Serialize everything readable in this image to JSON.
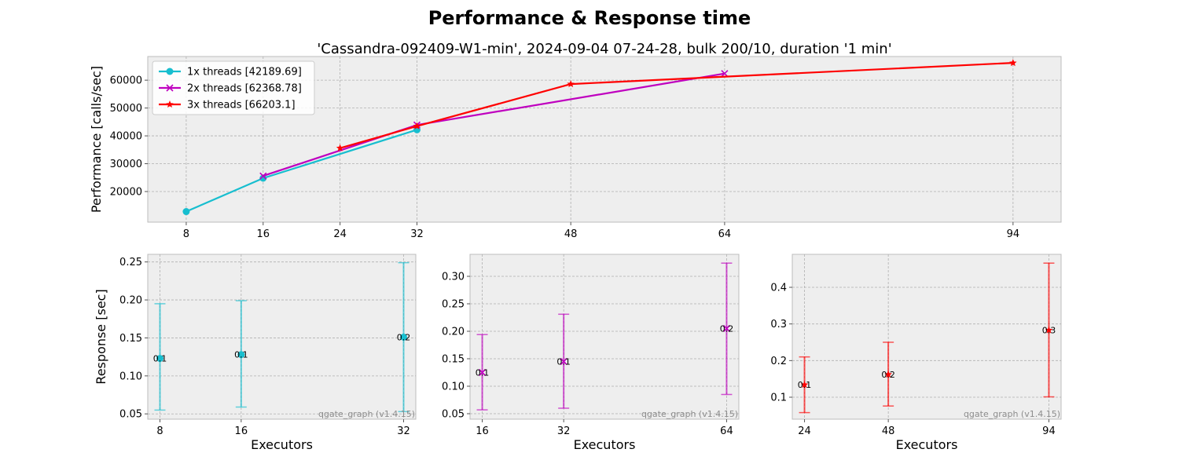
{
  "figure": {
    "title": "Performance & Response time",
    "subtitle": "'Cassandra-092409-W1-min', 2024-09-04 07-24-28, bulk 200/10, duration '1 min'",
    "watermark": "qgate_graph (v1.4.15)"
  },
  "chart_data": [
    {
      "type": "line",
      "id": "performance",
      "ylabel": "Performance [calls/sec]",
      "xlabel": "",
      "xlim": [
        4,
        99
      ],
      "ylim": [
        9000,
        68500
      ],
      "xticks": [
        8,
        16,
        24,
        32,
        48,
        64,
        94
      ],
      "yticks": [
        20000,
        30000,
        40000,
        50000,
        60000
      ],
      "grid": true,
      "legend_position": "top-left",
      "series": [
        {
          "name": "1x threads [42189.69]",
          "color": "#17becf",
          "marker": "circle",
          "x": [
            8,
            16,
            32
          ],
          "values": [
            12800,
            24800,
            42190
          ]
        },
        {
          "name": "2x threads [62368.78]",
          "color": "#bf00bf",
          "marker": "x",
          "x": [
            16,
            32,
            64
          ],
          "values": [
            25600,
            43900,
            62369
          ]
        },
        {
          "name": "3x threads [66203.1]",
          "color": "#ff0000",
          "marker": "star",
          "x": [
            24,
            32,
            48,
            94
          ],
          "values": [
            35600,
            43500,
            58600,
            66203
          ]
        }
      ]
    },
    {
      "type": "scatter",
      "id": "response-1x",
      "xlabel": "Executors",
      "ylabel": "Response [sec]",
      "xlim": [
        6.8,
        33.2
      ],
      "ylim": [
        0.043,
        0.26
      ],
      "xticks": [
        8,
        16,
        32
      ],
      "yticks": [
        0.05,
        0.1,
        0.15,
        0.2,
        0.25
      ],
      "grid": true,
      "color": "#17becf",
      "marker": "circle",
      "points": [
        {
          "x": 8,
          "y": 0.123,
          "min": 0.055,
          "max": 0.195,
          "label": "0.1"
        },
        {
          "x": 16,
          "y": 0.128,
          "min": 0.059,
          "max": 0.199,
          "label": "0.1"
        },
        {
          "x": 32,
          "y": 0.151,
          "min": 0.053,
          "max": 0.249,
          "label": "0.2"
        }
      ]
    },
    {
      "type": "scatter",
      "id": "response-2x",
      "xlabel": "Executors",
      "ylabel": "",
      "xlim": [
        13.6,
        66.4
      ],
      "ylim": [
        0.04,
        0.34
      ],
      "xticks": [
        16,
        32,
        64
      ],
      "yticks": [
        0.05,
        0.1,
        0.15,
        0.2,
        0.25,
        0.3
      ],
      "grid": true,
      "color": "#bf00bf",
      "marker": "x",
      "points": [
        {
          "x": 16,
          "y": 0.125,
          "min": 0.057,
          "max": 0.194,
          "label": "0.1"
        },
        {
          "x": 32,
          "y": 0.145,
          "min": 0.06,
          "max": 0.231,
          "label": "0.1"
        },
        {
          "x": 64,
          "y": 0.205,
          "min": 0.085,
          "max": 0.324,
          "label": "0.2"
        }
      ]
    },
    {
      "type": "scatter",
      "id": "response-3x",
      "xlabel": "Executors",
      "ylabel": "",
      "xlim": [
        20.5,
        97.5
      ],
      "ylim": [
        0.04,
        0.49
      ],
      "xticks": [
        24,
        48,
        94
      ],
      "yticks": [
        0.1,
        0.2,
        0.3,
        0.4
      ],
      "grid": true,
      "color": "#ff0000",
      "marker": "star",
      "points": [
        {
          "x": 24,
          "y": 0.134,
          "min": 0.058,
          "max": 0.21,
          "label": "0.1"
        },
        {
          "x": 48,
          "y": 0.162,
          "min": 0.076,
          "max": 0.25,
          "label": "0.2"
        },
        {
          "x": 94,
          "y": 0.283,
          "min": 0.101,
          "max": 0.466,
          "label": "0.3"
        }
      ]
    }
  ]
}
